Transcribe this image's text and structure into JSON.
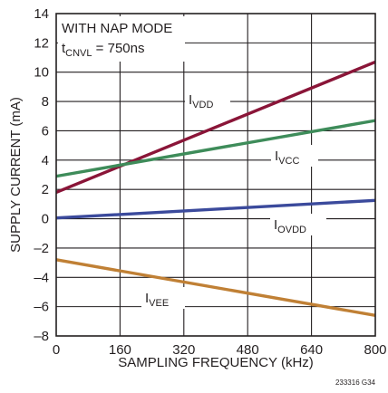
{
  "chart_data": {
    "type": "line",
    "title": "",
    "xlabel": "SAMPLING FREQUENCY (kHz)",
    "ylabel": "SUPPLY CURRENT (mA)",
    "xlim": [
      0,
      800
    ],
    "ylim": [
      -8,
      14
    ],
    "x_ticks": [
      "0",
      "160",
      "320",
      "480",
      "640",
      "800"
    ],
    "y_ticks": [
      "–8",
      "–6",
      "–4",
      "–2",
      "0",
      "2",
      "4",
      "6",
      "8",
      "10",
      "12",
      "14"
    ],
    "grid": true,
    "legend": "none (series labelled inline)",
    "annotation": {
      "line1": "WITH NAP MODE",
      "line2_main": "t",
      "line2_sub": "CNVL",
      "line2_rest": " = 750ns"
    },
    "series": [
      {
        "name": "IVDD",
        "label_main": "I",
        "label_sub": "VDD",
        "color": "#8a1538",
        "x": [
          0,
          800
        ],
        "y": [
          1.8,
          10.7
        ]
      },
      {
        "name": "IVCC",
        "label_main": "I",
        "label_sub": "VCC",
        "color": "#3e8c5a",
        "x": [
          0,
          800
        ],
        "y": [
          2.9,
          6.7
        ]
      },
      {
        "name": "IOVDD",
        "label_main": "I",
        "label_sub": "OVDD",
        "color": "#3b4a9c",
        "x": [
          0,
          800
        ],
        "y": [
          0.05,
          1.25
        ]
      },
      {
        "name": "IVEE",
        "label_main": "I",
        "label_sub": "VEE",
        "color": "#c08035",
        "x": [
          0,
          800
        ],
        "y": [
          -2.8,
          -6.6
        ]
      }
    ]
  },
  "figure_id": "233316 G34"
}
